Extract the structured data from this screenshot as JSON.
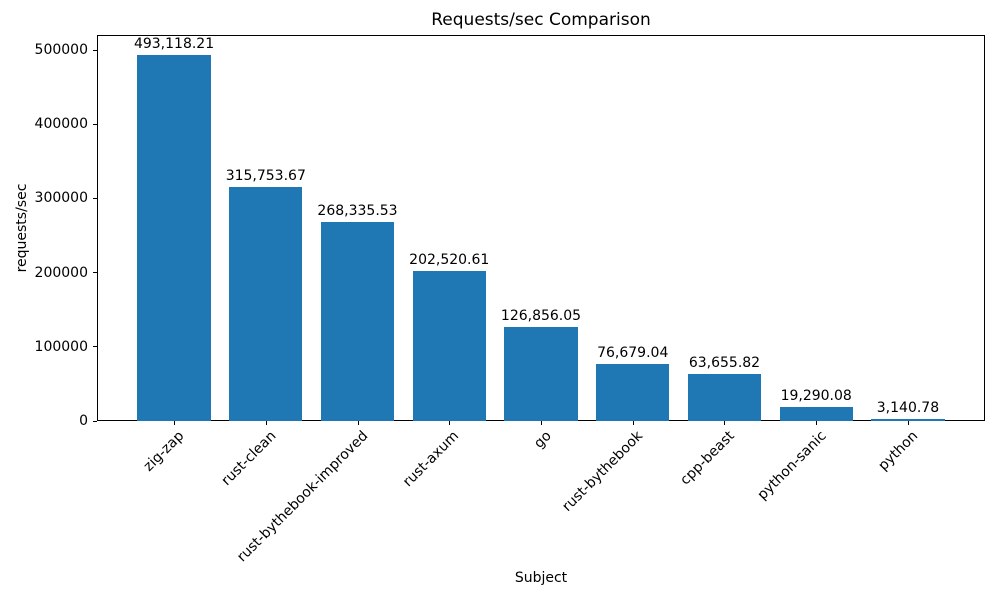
{
  "chart_data": {
    "type": "bar",
    "title": "Requests/sec Comparison",
    "xlabel": "Subject",
    "ylabel": "requests/sec",
    "categories": [
      "zig-zap",
      "rust-clean",
      "rust-bythebook-improved",
      "rust-axum",
      "go",
      "rust-bythebook",
      "cpp-beast",
      "python-sanic",
      "python"
    ],
    "values": [
      493118.21,
      315753.67,
      268335.53,
      202520.61,
      126856.05,
      76679.04,
      63655.82,
      19290.08,
      3140.78
    ],
    "value_labels": [
      "493,118.21",
      "315,753.67",
      "268,335.53",
      "202,520.61",
      "126,856.05",
      "76,679.04",
      "63,655.82",
      "19,290.08",
      "3,140.78"
    ],
    "yticks": [
      0,
      100000,
      200000,
      300000,
      400000,
      500000
    ],
    "ytick_labels": [
      "0",
      "100000",
      "200000",
      "300000",
      "400000",
      "500000"
    ],
    "ylim": [
      0,
      520216
    ],
    "xlim": [
      -0.84,
      8.84
    ],
    "bar_width_fraction": 0.8,
    "bar_color": "#1f77b4",
    "grid": false,
    "legend": "none",
    "x_tick_label_rotation_deg": 45
  }
}
